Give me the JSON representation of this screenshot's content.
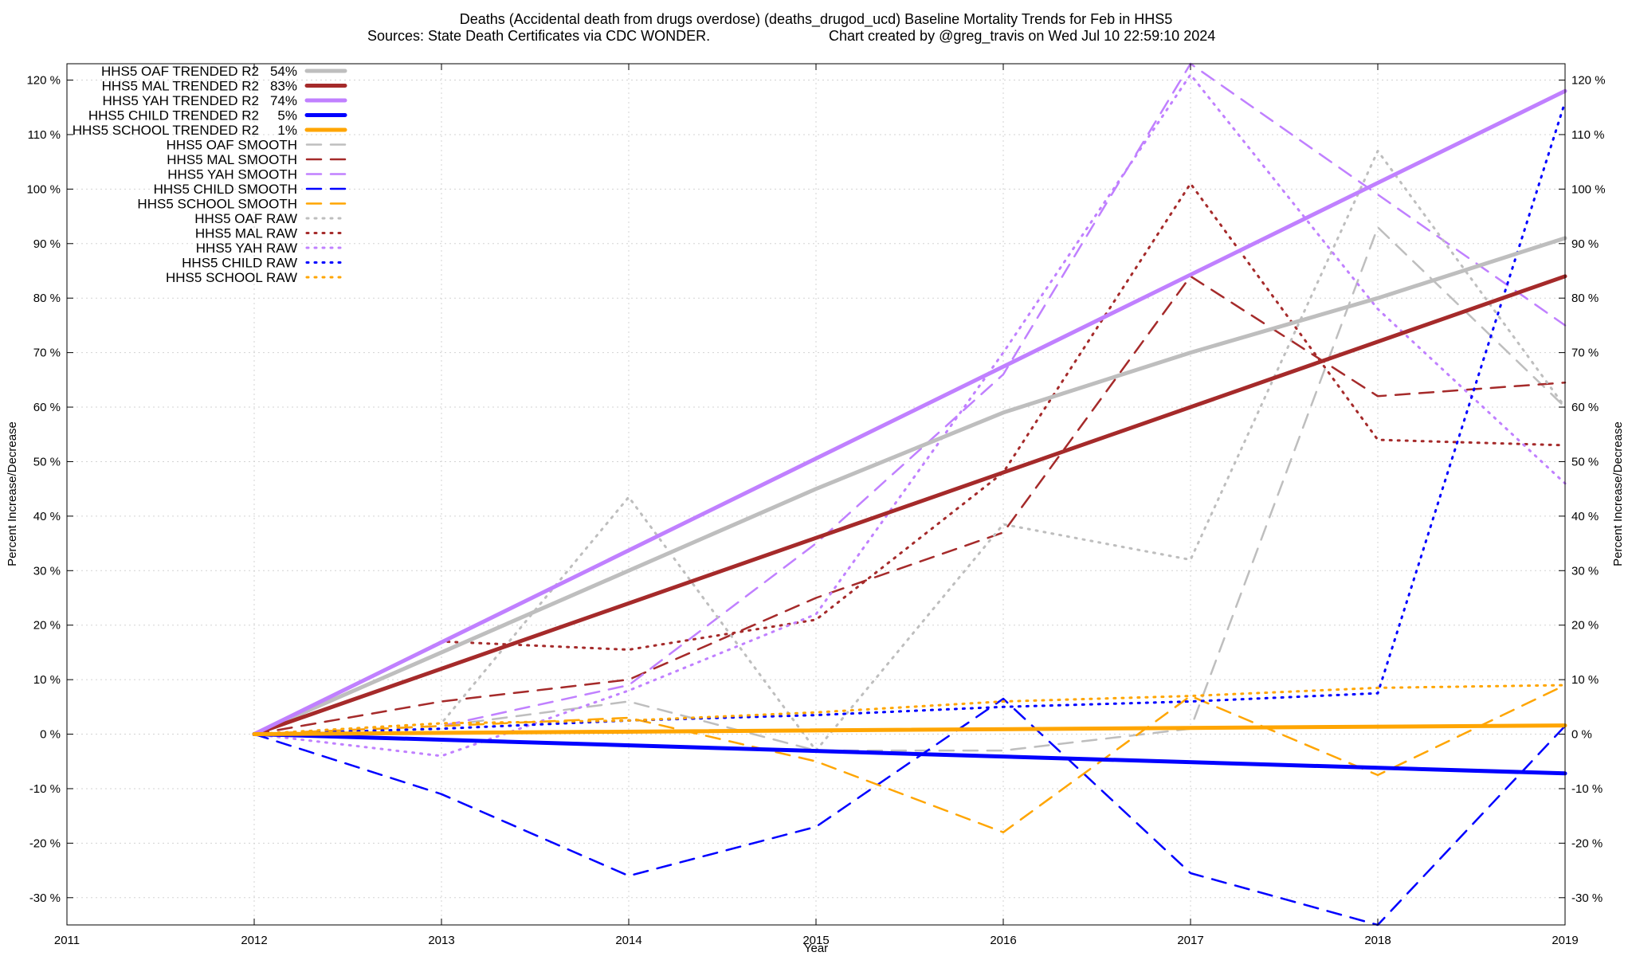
{
  "title_line1": "Deaths (Accidental death from drugs overdose) (deaths_drugod_ucd)  Baseline Mortality Trends for Feb in HHS5",
  "title_line2_left": "Sources: State Death Certificates via CDC WONDER.",
  "title_line2_right": "Chart created by @greg_travis on Wed Jul 10 22:59:10 2024",
  "chart_data": {
    "type": "line",
    "xlabel": "Year",
    "ylabel": "Percent Increase/Decrease",
    "y2label": "Percent Increase/Decrease",
    "xlim": [
      2011,
      2019
    ],
    "ylim": [
      -35,
      123
    ],
    "x_ticks": [
      "2011",
      "2012",
      "2013",
      "2014",
      "2015",
      "2016",
      "2017",
      "2018",
      "2019"
    ],
    "y_ticks": [
      "-30 %",
      "-20 %",
      "-10 %",
      "0 %",
      "10 %",
      "20 %",
      "30 %",
      "40 %",
      "50 %",
      "60 %",
      "70 %",
      "80 %",
      "90 %",
      "100 %",
      "110 %",
      "120 %"
    ],
    "grid": true,
    "legend_position": "top-left",
    "series": [
      {
        "name": "HHS5 OAF TRENDED R2",
        "r2": "54%",
        "color": "#bebebe",
        "style": "trend",
        "x": [
          2012,
          2013,
          2014,
          2015,
          2016,
          2017,
          2018,
          2019
        ],
        "y": [
          0,
          15,
          30,
          45,
          59,
          70,
          80,
          91
        ]
      },
      {
        "name": "HHS5 MAL TRENDED R2",
        "r2": "83%",
        "color": "#a52a2a",
        "style": "trend",
        "x": [
          2012,
          2019
        ],
        "y": [
          0,
          84
        ]
      },
      {
        "name": "HHS5 YAH TRENDED R2",
        "r2": "74%",
        "color": "#c080ff",
        "style": "trend",
        "x": [
          2012,
          2019
        ],
        "y": [
          0,
          118
        ]
      },
      {
        "name": "HHS5 CHILD TRENDED R2",
        "r2": "5%",
        "color": "#0000ff",
        "style": "trend",
        "x": [
          2012,
          2019
        ],
        "y": [
          0,
          -7.2
        ]
      },
      {
        "name": "HHS5 SCHOOL TRENDED R2",
        "r2": "1%",
        "color": "#ffa500",
        "style": "trend",
        "x": [
          2012,
          2019
        ],
        "y": [
          0,
          1.6
        ]
      },
      {
        "name": "HHS5 OAF SMOOTH",
        "color": "#bebebe",
        "style": "smooth",
        "x": [
          2012,
          2013,
          2014,
          2015,
          2016,
          2017,
          2018,
          2019
        ],
        "y": [
          0,
          1.5,
          6,
          -3,
          -3,
          1,
          93,
          60
        ]
      },
      {
        "name": "HHS5 MAL SMOOTH",
        "color": "#a52a2a",
        "style": "smooth",
        "x": [
          2012,
          2013,
          2014,
          2015,
          2016,
          2017,
          2018,
          2019
        ],
        "y": [
          0,
          6,
          10,
          25,
          37,
          84,
          62,
          64.5
        ]
      },
      {
        "name": "HHS5 YAH SMOOTH",
        "color": "#c080ff",
        "style": "smooth",
        "x": [
          2012,
          2013,
          2014,
          2015,
          2016,
          2017,
          2018,
          2019
        ],
        "y": [
          0,
          1.5,
          9,
          35,
          66,
          123,
          99,
          75
        ]
      },
      {
        "name": "HHS5 CHILD SMOOTH",
        "color": "#0000ff",
        "style": "smooth",
        "x": [
          2012,
          2013,
          2014,
          2015,
          2016,
          2017,
          2018,
          2019
        ],
        "y": [
          0,
          -11,
          -26,
          -17,
          6.5,
          -25.5,
          -35,
          1.5
        ]
      },
      {
        "name": "HHS5 SCHOOL SMOOTH",
        "color": "#ffa500",
        "style": "smooth",
        "x": [
          2012,
          2013,
          2014,
          2015,
          2016,
          2017,
          2018,
          2019
        ],
        "y": [
          0,
          1.5,
          3,
          -5,
          -18,
          7,
          -7.5,
          9
        ]
      },
      {
        "name": "HHS5 OAF RAW",
        "color": "#bebebe",
        "style": "raw",
        "x": [
          2012,
          2013,
          2014,
          2015,
          2016,
          2017,
          2018,
          2019
        ],
        "y": [
          0,
          2,
          43.5,
          -3,
          38.5,
          32,
          107,
          60
        ]
      },
      {
        "name": "HHS5 MAL RAW",
        "color": "#a52a2a",
        "style": "raw",
        "x": [
          2012,
          2013,
          2014,
          2015,
          2016,
          2017,
          2018,
          2019
        ],
        "y": [
          0,
          17,
          15.5,
          21,
          48,
          101,
          54,
          53
        ]
      },
      {
        "name": "HHS5 YAH RAW",
        "color": "#c080ff",
        "style": "raw",
        "x": [
          2012,
          2013,
          2014,
          2015,
          2016,
          2017,
          2018,
          2019
        ],
        "y": [
          0,
          -4,
          8,
          22,
          70,
          121,
          78,
          46
        ]
      },
      {
        "name": "HHS5 CHILD RAW",
        "color": "#0000ff",
        "style": "raw",
        "x": [
          2012,
          2013,
          2014,
          2015,
          2016,
          2017,
          2018,
          2019
        ],
        "y": [
          0,
          1,
          2.5,
          3.5,
          5,
          6,
          7.5,
          116
        ]
      },
      {
        "name": "HHS5 SCHOOL RAW",
        "color": "#ffa500",
        "style": "raw",
        "x": [
          2012,
          2013,
          2014,
          2015,
          2016,
          2017,
          2018,
          2019
        ],
        "y": [
          0,
          2,
          2.5,
          4,
          6,
          7,
          8.5,
          9
        ]
      }
    ]
  }
}
